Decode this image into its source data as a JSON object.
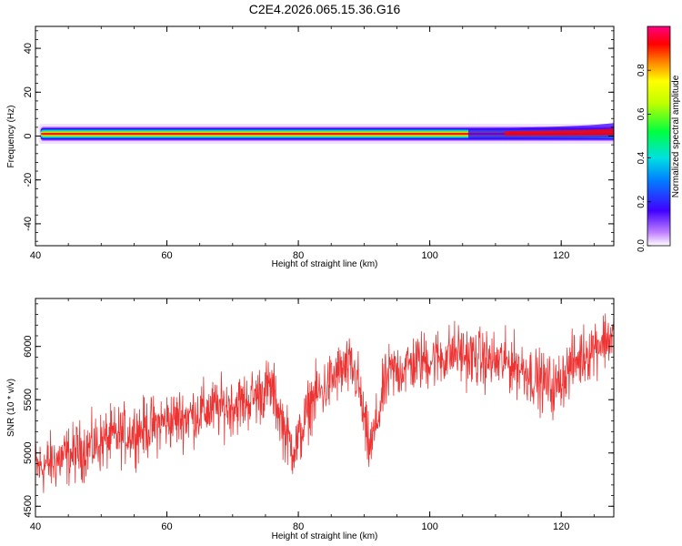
{
  "title": "C2E4.2026.065.15.36.G16",
  "chart_data": [
    {
      "type": "heatmap",
      "xlabel": "Height of straight line (km)",
      "ylabel": "Frequency (Hz)",
      "xlim": [
        40,
        128
      ],
      "ylim": [
        -50,
        50
      ],
      "xticks": [
        40,
        60,
        80,
        100,
        120
      ],
      "yticks": [
        40,
        20,
        0,
        -20,
        -40
      ],
      "grid": false,
      "colorbar": {
        "label": "Normalized spectral amplitude",
        "range": [
          0,
          1
        ],
        "ticks": [
          "0.0",
          "0.2",
          "0.4",
          "0.6",
          "0.8"
        ],
        "colormap": "rainbow"
      },
      "ridge": {
        "x_range": [
          40.5,
          128
        ],
        "center_frequency": 1,
        "peak_amplitude": 1.0
      }
    },
    {
      "type": "line",
      "xlabel": "Height of straight line (km)",
      "ylabel": "SNR (10 * v/v)",
      "xlim": [
        40,
        128
      ],
      "ylim": [
        4400,
        6450
      ],
      "xticks": [
        40,
        60,
        80,
        100,
        120
      ],
      "yticks": [
        4500,
        5000,
        5500,
        6000
      ],
      "grid": false,
      "series": [
        {
          "color": "#ee3333",
          "x": [
            40,
            42,
            44,
            46,
            48,
            50,
            52,
            54,
            56,
            58,
            60,
            62,
            64,
            66,
            68,
            70,
            72,
            74,
            75,
            76,
            77,
            78,
            79,
            80,
            81,
            82,
            84,
            86,
            88,
            89,
            90,
            90.5,
            91,
            92,
            93,
            94,
            96,
            98,
            100,
            102,
            104,
            106,
            108,
            110,
            112,
            114,
            116,
            118,
            119,
            120,
            122,
            124,
            126,
            128
          ],
          "y": [
            4850,
            4900,
            4950,
            5000,
            5050,
            5100,
            5150,
            5180,
            5220,
            5250,
            5300,
            5330,
            5360,
            5400,
            5420,
            5450,
            5480,
            5550,
            5600,
            5600,
            5400,
            5200,
            5050,
            5100,
            5300,
            5500,
            5600,
            5750,
            5800,
            5700,
            5300,
            5100,
            5050,
            5300,
            5600,
            5750,
            5800,
            5850,
            5880,
            5900,
            5950,
            5900,
            5880,
            5850,
            5850,
            5800,
            5700,
            5650,
            5600,
            5700,
            5850,
            5950,
            6050,
            6100
          ],
          "noise_amplitude": 230
        }
      ]
    }
  ]
}
